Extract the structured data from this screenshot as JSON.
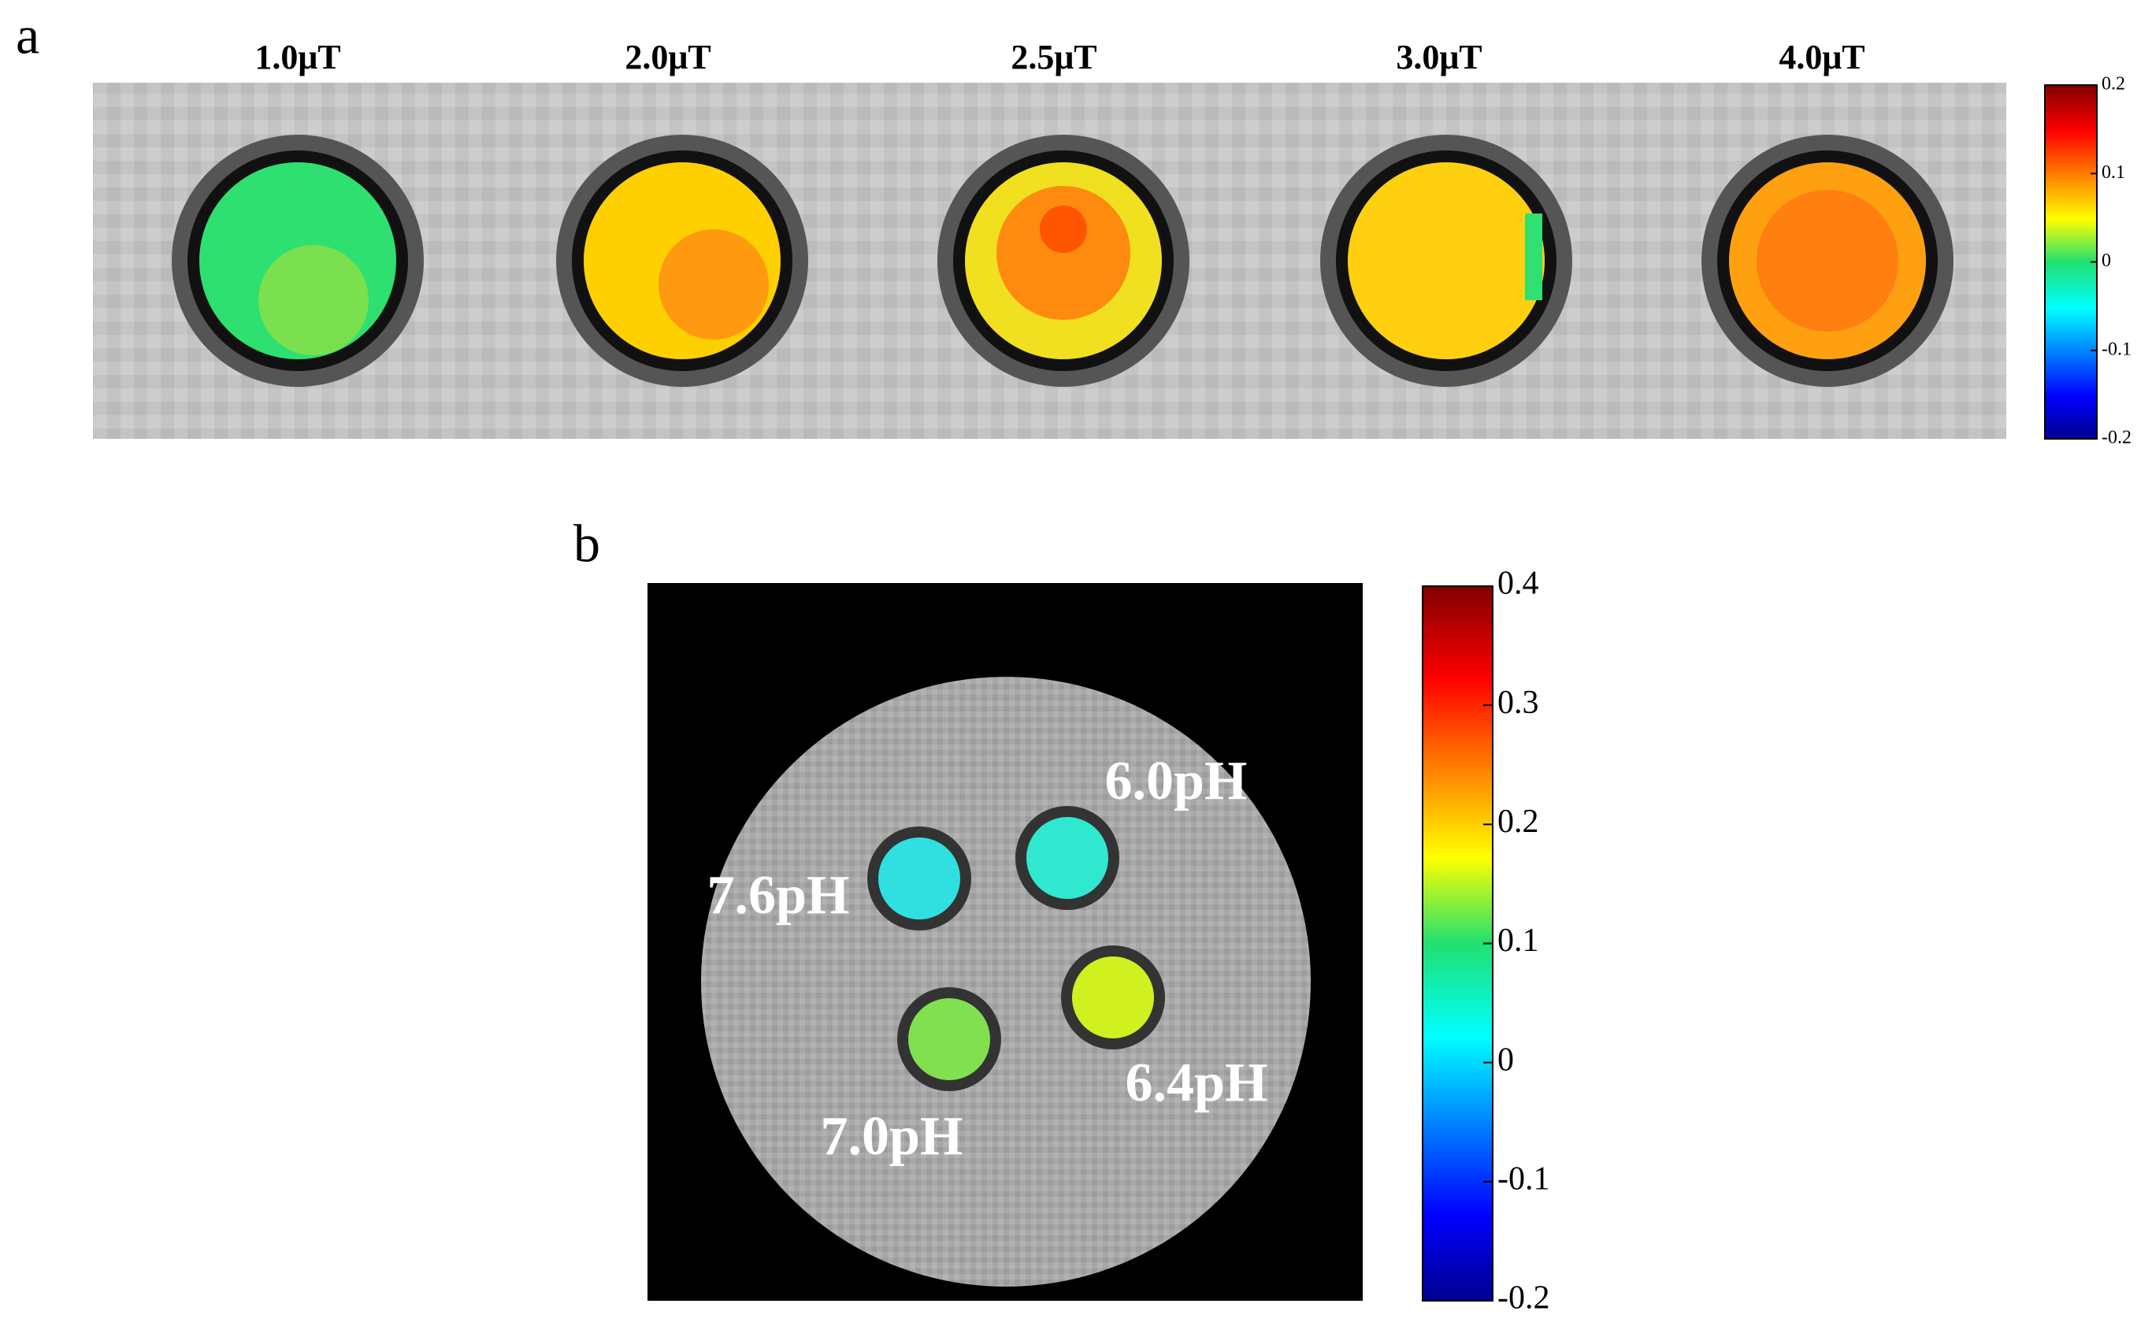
{
  "panel_a": {
    "label": "a",
    "titles": [
      "1.0μT",
      "2.0μT",
      "2.5μT",
      "3.0μT",
      "4.0μT"
    ],
    "colorbar": {
      "ticks": [
        0.2,
        0.1,
        0,
        -0.1,
        -0.2
      ]
    }
  },
  "panel_b": {
    "label": "b",
    "samples": [
      "6.0pH",
      "7.6pH",
      "7.0pH",
      "6.4pH"
    ],
    "colorbar": {
      "ticks": [
        0.4,
        0.3,
        0.2,
        0.1,
        0,
        -0.1,
        -0.2
      ]
    }
  }
}
